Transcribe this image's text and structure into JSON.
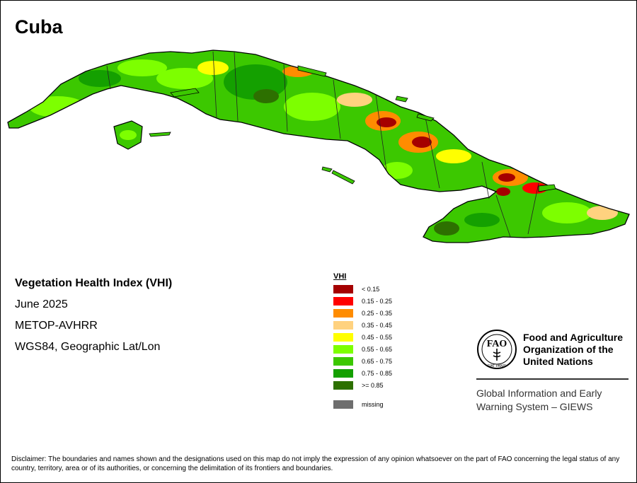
{
  "map": {
    "title": "Cuba",
    "info": {
      "index_name": "Vegetation Health Index (VHI)",
      "date": "June 2025",
      "sensor": "METOP-AVHRR",
      "projection": "WGS84, Geographic Lat/Lon"
    },
    "legend": {
      "title": "VHI",
      "classes": [
        {
          "label": "< 0.15",
          "color": "#a50000"
        },
        {
          "label": "0.15 - 0.25",
          "color": "#ff0000"
        },
        {
          "label": "0.25 - 0.35",
          "color": "#ff8c00"
        },
        {
          "label": "0.35 - 0.45",
          "color": "#ffd27f"
        },
        {
          "label": "0.45 - 0.55",
          "color": "#ffff00"
        },
        {
          "label": "0.55 - 0.65",
          "color": "#7dff00"
        },
        {
          "label": "0.65 - 0.75",
          "color": "#3cc800"
        },
        {
          "label": "0.75 - 0.85",
          "color": "#14a000"
        },
        {
          "label": ">= 0.85",
          "color": "#2d7000"
        }
      ],
      "missing": {
        "label": "missing",
        "color": "#6e6e6e"
      }
    }
  },
  "organization": {
    "logo_text": "FAO",
    "logo_motto": "FIAT PANIS",
    "name_lines": [
      "Food and Agriculture",
      "Organization of the",
      "United Nations"
    ],
    "system_lines": [
      "Global Information and Early",
      "Warning System – GIEWS"
    ]
  },
  "disclaimer": "Disclaimer: The boundaries and names shown and the designations used on this map do not imply the expression of any opinion whatsoever on the part of FAO concerning the legal status of any country, territory, area or of its authorities, or concerning the delimitation of its frontiers and boundaries."
}
